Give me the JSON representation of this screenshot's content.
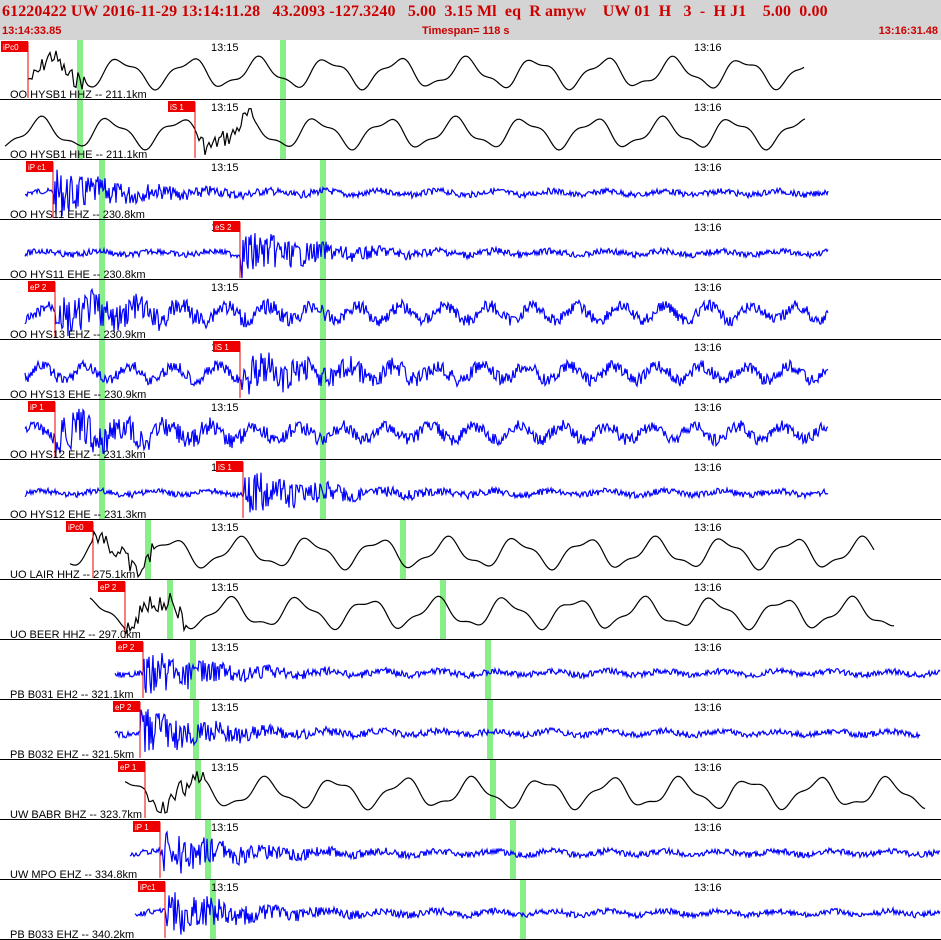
{
  "header": {
    "title": "61220422 UW 2016-11-29 13:14:11.28   43.2093 -127.3240   5.00  3.15 Ml  eq  R amyw    UW 01  H   3  -  H J1    5.00  0.00",
    "start_time": "13:14:33.85",
    "timespan": "Timespan= 118 s",
    "end_time": "13:16:31.48"
  },
  "tick_labels": {
    "first": "13:15",
    "second": "13:16"
  },
  "colors": {
    "header_bg": "#d4d4d4",
    "header_text": "#cc0000",
    "trace_black": "#000000",
    "trace_blue": "#0000ff",
    "pick_red": "#ee0000",
    "marker_green": "#88ee88",
    "grid": "#000000"
  },
  "traces": [
    {
      "label": "OO HYSB1 HHZ -- 211.1km",
      "color": "black",
      "pick": "iPc0",
      "style": "long"
    },
    {
      "label": "OO HYSB1 HHE -- 211.1km",
      "color": "black",
      "pick": "iS 1",
      "style": "long"
    },
    {
      "label": "OO HYS11 EHZ -- 230.8km",
      "color": "blue",
      "pick": "iP c1",
      "style": "burst"
    },
    {
      "label": "OO HYS11 EHE -- 230.8km",
      "color": "blue",
      "pick": "eS 2",
      "style": "burst"
    },
    {
      "label": "OO HYS13 EHZ -- 230.9km",
      "color": "blue",
      "pick": "eP 2",
      "style": "mixed"
    },
    {
      "label": "OO HYS13 EHE -- 230.9km",
      "color": "blue",
      "pick": "iS 1",
      "style": "mixed"
    },
    {
      "label": "OO HYS12 EHZ -- 231.3km",
      "color": "blue",
      "pick": "iP 1",
      "style": "mixed"
    },
    {
      "label": "OO HYS12 EHE -- 231.3km",
      "color": "blue",
      "pick": "iS 1",
      "style": "burst"
    },
    {
      "label": "UO LAIR HHZ -- 275.1km",
      "color": "black",
      "pick": "iPc0",
      "style": "long"
    },
    {
      "label": "UO BEER HHZ -- 297.0km",
      "color": "black",
      "pick": "eP 2",
      "style": "long"
    },
    {
      "label": "PB B031 EH2 -- 321.1km",
      "color": "blue",
      "pick": "eP 2",
      "style": "burst"
    },
    {
      "label": "PB B032 EHZ -- 321.5km",
      "color": "blue",
      "pick": "eP 2",
      "style": "burst"
    },
    {
      "label": "UW BABR BHZ -- 323.7km",
      "color": "black",
      "pick": "eP 1",
      "style": "long"
    },
    {
      "label": "UW MPO EHZ -- 334.8km",
      "color": "blue",
      "pick": "iP 1",
      "style": "burst"
    },
    {
      "label": "PB B033 EHZ -- 340.2km",
      "color": "blue",
      "pick": "iPc1",
      "style": "burst"
    }
  ]
}
